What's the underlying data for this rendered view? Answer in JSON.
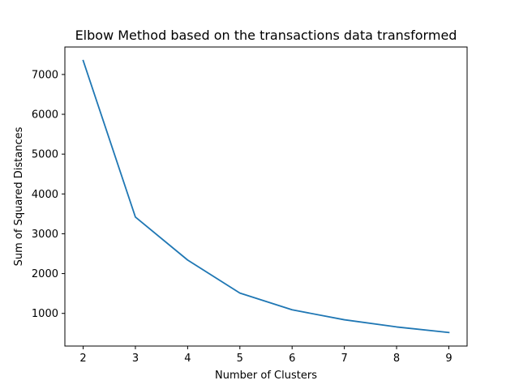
{
  "chart_data": {
    "type": "line",
    "title": "Elbow Method based on the transactions data transformed",
    "xlabel": "Number of Clusters",
    "ylabel": "Sum of Squared Distances",
    "x": [
      2,
      3,
      4,
      5,
      6,
      7,
      8,
      9
    ],
    "series": [
      {
        "values": [
          7350,
          3420,
          2340,
          1510,
          1090,
          840,
          660,
          520
        ],
        "color": "#1f77b4"
      }
    ],
    "xticks": [
      2,
      3,
      4,
      5,
      6,
      7,
      8,
      9
    ],
    "yticks": [
      1000,
      2000,
      3000,
      4000,
      5000,
      6000,
      7000
    ],
    "xlim": [
      1.65,
      9.35
    ],
    "ylim": [
      180,
      7690
    ],
    "grid": false,
    "legend": false
  }
}
